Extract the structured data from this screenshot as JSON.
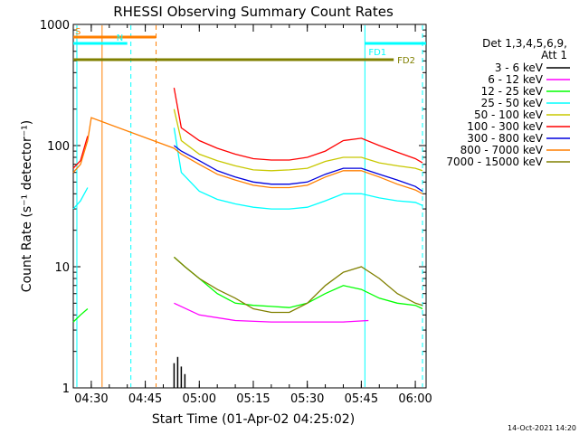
{
  "chart_data": {
    "type": "line",
    "title": "RHESSI Observing Summary Count Rates",
    "xlabel": "Start Time (01-Apr-02 04:25:02)",
    "ylabel": "Count Rate (s⁻¹ detector⁻¹)",
    "ylog": true,
    "ylim": [
      1,
      1000
    ],
    "xlim": [
      "04:25",
      "06:03"
    ],
    "x_ticks": [
      "04:30",
      "04:45",
      "05:00",
      "05:15",
      "05:30",
      "05:45",
      "06:00"
    ],
    "y_ticks": [
      "1",
      "10",
      "100",
      "1000"
    ],
    "legend_header": [
      "Det 1,3,4,5,6,9,",
      "Att 1"
    ],
    "legend_placement": "right",
    "footer_date": "14-Oct-2021 14:20",
    "markers": [
      {
        "label": "S",
        "color": "#ff7f00",
        "x_start": "04:25",
        "x_end": "04:48"
      },
      {
        "label": "N",
        "color": "#00ffff",
        "x_start": "04:25",
        "x_end": "04:40"
      },
      {
        "label": "FD1",
        "color": "#00ffff",
        "x_start": "05:46",
        "x_end": "06:03"
      },
      {
        "label": "FD2",
        "color": "#808000",
        "x_start": "04:25",
        "x_end": "05:54"
      }
    ],
    "series": [
      {
        "name": "3 - 6 keV",
        "color": "#000000",
        "x": [
          "04:53",
          "04:54",
          "04:55",
          "04:56"
        ],
        "y": [
          1.6,
          1.8,
          1.5,
          1.3
        ]
      },
      {
        "name": "6 - 12 keV",
        "color": "#ff00ff",
        "x": [
          "04:53",
          "05:00",
          "05:10",
          "05:20",
          "05:30",
          "05:40",
          "05:47"
        ],
        "y": [
          5.0,
          4.0,
          3.6,
          3.5,
          3.5,
          3.5,
          3.6
        ]
      },
      {
        "name": "12 - 25 keV",
        "color": "#00ff00",
        "x": [
          "04:53",
          "04:56",
          "05:00",
          "05:05",
          "05:10",
          "05:15",
          "05:20",
          "05:25",
          "05:30",
          "05:35",
          "05:40",
          "05:45",
          "05:50",
          "05:55",
          "06:00",
          "06:02"
        ],
        "y": [
          12,
          10,
          8,
          6,
          5,
          4.8,
          4.7,
          4.6,
          5,
          6,
          7,
          6.5,
          5.5,
          5,
          4.8,
          4.5
        ]
      },
      {
        "name": "25 - 50 keV",
        "color": "#00ffff",
        "x": [
          "04:53",
          "04:55",
          "05:00",
          "05:05",
          "05:10",
          "05:15",
          "05:20",
          "05:25",
          "05:30",
          "05:35",
          "05:40",
          "05:45",
          "05:50",
          "05:55",
          "06:00",
          "06:02"
        ],
        "y": [
          140,
          60,
          42,
          36,
          33,
          31,
          30,
          30,
          31,
          35,
          40,
          40,
          37,
          35,
          34,
          32
        ]
      },
      {
        "name": "50 - 100 keV",
        "color": "#c8c800",
        "x": [
          "04:53",
          "04:55",
          "05:00",
          "05:05",
          "05:10",
          "05:15",
          "05:20",
          "05:25",
          "05:30",
          "05:35",
          "05:40",
          "05:45",
          "05:50",
          "05:55",
          "06:00",
          "06:02"
        ],
        "y": [
          200,
          110,
          85,
          75,
          68,
          63,
          62,
          63,
          65,
          74,
          80,
          80,
          72,
          68,
          65,
          62
        ]
      },
      {
        "name": "100 - 300 keV",
        "color": "#ff0000",
        "x": [
          "04:53",
          "04:55",
          "05:00",
          "05:05",
          "05:10",
          "05:15",
          "05:20",
          "05:25",
          "05:30",
          "05:35",
          "05:40",
          "05:45",
          "05:50",
          "05:55",
          "06:00",
          "06:02"
        ],
        "y": [
          300,
          140,
          110,
          95,
          85,
          78,
          76,
          76,
          80,
          90,
          110,
          115,
          100,
          88,
          78,
          72
        ]
      },
      {
        "name": "300 - 800 keV",
        "color": "#0000dd",
        "x": [
          "04:53",
          "04:55",
          "05:00",
          "05:05",
          "05:10",
          "05:15",
          "05:20",
          "05:25",
          "05:30",
          "05:35",
          "05:40",
          "05:45",
          "05:50",
          "05:55",
          "06:00",
          "06:02"
        ],
        "y": [
          100,
          90,
          75,
          62,
          55,
          50,
          48,
          48,
          50,
          58,
          65,
          65,
          58,
          52,
          46,
          42
        ]
      },
      {
        "name": "800 - 7000 keV",
        "color": "#ff7f00",
        "x": [
          "04:25",
          "04:27",
          "04:29",
          "04:30",
          "04:53",
          "04:55",
          "05:00",
          "05:05",
          "05:10",
          "05:15",
          "05:20",
          "05:25",
          "05:30",
          "05:35",
          "05:40",
          "05:45",
          "05:50",
          "05:55",
          "06:00",
          "06:02"
        ],
        "y": [
          60,
          70,
          110,
          170,
          95,
          85,
          70,
          58,
          52,
          47,
          45,
          45,
          47,
          55,
          62,
          62,
          55,
          48,
          43,
          40
        ]
      },
      {
        "name": "7000 - 15000 keV",
        "color": "#808000",
        "x": [
          "04:53",
          "04:56",
          "05:00",
          "05:05",
          "05:10",
          "05:15",
          "05:20",
          "05:25",
          "05:30",
          "05:35",
          "05:40",
          "05:45",
          "05:50",
          "05:55",
          "06:00",
          "06:02"
        ],
        "y": [
          12,
          10,
          8,
          6.5,
          5.5,
          4.5,
          4.2,
          4.2,
          5,
          7,
          9,
          10,
          8,
          6,
          5,
          4.8
        ]
      }
    ],
    "early_segments": [
      {
        "color": "#00ff00",
        "x": [
          "04:25",
          "04:27",
          "04:29"
        ],
        "y": [
          3.5,
          4,
          4.5
        ]
      },
      {
        "color": "#00ffff",
        "x": [
          "04:25",
          "04:27",
          "04:29"
        ],
        "y": [
          30,
          35,
          45
        ]
      },
      {
        "color": "#ff0000",
        "x": [
          "04:25",
          "04:27",
          "04:29"
        ],
        "y": [
          65,
          75,
          120
        ]
      }
    ]
  }
}
